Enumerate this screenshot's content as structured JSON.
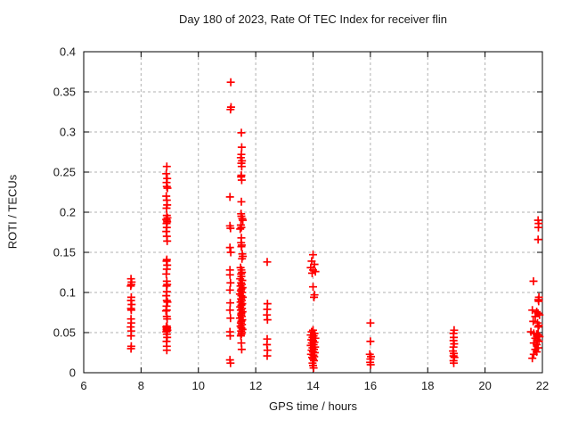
{
  "chart_data": {
    "type": "scatter",
    "title": "Day 180 of 2023, Rate Of TEC Index for receiver flin",
    "xlabel": "GPS time / hours",
    "ylabel": "ROTI / TECUs",
    "xlim": [
      6,
      22
    ],
    "ylim": [
      0,
      0.4
    ],
    "x_ticks": [
      6,
      8,
      10,
      12,
      14,
      16,
      18,
      20,
      22
    ],
    "x_tick_labels": [
      "6",
      "8",
      "10",
      "12",
      "14",
      "16",
      "18",
      "20",
      "22"
    ],
    "y_ticks": [
      0,
      0.05,
      0.1,
      0.15,
      0.2,
      0.25,
      0.3,
      0.35,
      0.4
    ],
    "y_tick_labels": [
      "0",
      "0.05",
      "0.1",
      "0.15",
      "0.2",
      "0.25",
      "0.3",
      "0.35",
      "0.4"
    ],
    "grid": true,
    "legend_position": "none",
    "marker": "plus",
    "marker_color": "#ff0000",
    "grid_color": "#b0b0b0",
    "axis_color": "#000000",
    "series": [
      {
        "name": "ROTI",
        "points": [
          [
            7.65,
            0.117
          ],
          [
            7.67,
            0.113
          ],
          [
            7.66,
            0.11
          ],
          [
            7.64,
            0.108
          ],
          [
            7.66,
            0.094
          ],
          [
            7.65,
            0.09
          ],
          [
            7.67,
            0.085
          ],
          [
            7.65,
            0.08
          ],
          [
            7.66,
            0.078
          ],
          [
            7.65,
            0.067
          ],
          [
            7.66,
            0.062
          ],
          [
            7.64,
            0.057
          ],
          [
            7.66,
            0.052
          ],
          [
            7.65,
            0.046
          ],
          [
            7.66,
            0.033
          ],
          [
            7.65,
            0.03
          ],
          [
            8.9,
            0.257
          ],
          [
            8.88,
            0.248
          ],
          [
            8.91,
            0.242
          ],
          [
            8.89,
            0.237
          ],
          [
            8.9,
            0.232
          ],
          [
            8.92,
            0.23
          ],
          [
            8.88,
            0.22
          ],
          [
            8.9,
            0.215
          ],
          [
            8.91,
            0.209
          ],
          [
            8.89,
            0.205
          ],
          [
            8.9,
            0.196
          ],
          [
            8.92,
            0.193
          ],
          [
            8.88,
            0.191
          ],
          [
            8.9,
            0.19
          ],
          [
            8.91,
            0.188
          ],
          [
            8.89,
            0.186
          ],
          [
            8.9,
            0.181
          ],
          [
            8.88,
            0.176
          ],
          [
            8.9,
            0.17
          ],
          [
            8.91,
            0.164
          ],
          [
            8.9,
            0.141
          ],
          [
            8.89,
            0.139
          ],
          [
            8.91,
            0.134
          ],
          [
            8.9,
            0.129
          ],
          [
            8.88,
            0.123
          ],
          [
            8.9,
            0.114
          ],
          [
            8.91,
            0.11
          ],
          [
            8.89,
            0.108
          ],
          [
            8.9,
            0.101
          ],
          [
            8.88,
            0.096
          ],
          [
            8.9,
            0.09
          ],
          [
            8.92,
            0.088
          ],
          [
            8.89,
            0.083
          ],
          [
            8.9,
            0.078
          ],
          [
            8.87,
            0.077
          ],
          [
            8.9,
            0.07
          ],
          [
            8.91,
            0.067
          ],
          [
            8.9,
            0.058
          ],
          [
            8.88,
            0.057
          ],
          [
            8.91,
            0.056
          ],
          [
            8.9,
            0.055
          ],
          [
            8.89,
            0.054
          ],
          [
            8.92,
            0.053
          ],
          [
            8.9,
            0.052
          ],
          [
            8.88,
            0.051
          ],
          [
            8.9,
            0.048
          ],
          [
            8.91,
            0.044
          ],
          [
            8.89,
            0.039
          ],
          [
            8.9,
            0.033
          ],
          [
            8.9,
            0.028
          ],
          [
            11.13,
            0.362
          ],
          [
            11.14,
            0.331
          ],
          [
            11.12,
            0.328
          ],
          [
            11.1,
            0.219
          ],
          [
            11.1,
            0.183
          ],
          [
            11.12,
            0.18
          ],
          [
            11.1,
            0.156
          ],
          [
            11.13,
            0.15
          ],
          [
            11.1,
            0.128
          ],
          [
            11.1,
            0.122
          ],
          [
            11.12,
            0.112
          ],
          [
            11.1,
            0.103
          ],
          [
            11.11,
            0.087
          ],
          [
            11.1,
            0.078
          ],
          [
            11.12,
            0.068
          ],
          [
            11.1,
            0.051
          ],
          [
            11.11,
            0.046
          ],
          [
            11.1,
            0.016
          ],
          [
            11.12,
            0.012
          ],
          [
            11.5,
            0.299
          ],
          [
            11.51,
            0.281
          ],
          [
            11.5,
            0.272
          ],
          [
            11.48,
            0.268
          ],
          [
            11.52,
            0.264
          ],
          [
            11.5,
            0.261
          ],
          [
            11.51,
            0.257
          ],
          [
            11.5,
            0.246
          ],
          [
            11.49,
            0.244
          ],
          [
            11.51,
            0.24
          ],
          [
            11.5,
            0.213
          ],
          [
            11.49,
            0.198
          ],
          [
            11.5,
            0.195
          ],
          [
            11.53,
            0.192
          ],
          [
            11.55,
            0.19
          ],
          [
            11.48,
            0.184
          ],
          [
            11.5,
            0.181
          ],
          [
            11.46,
            0.179
          ],
          [
            11.5,
            0.168
          ],
          [
            11.49,
            0.162
          ],
          [
            11.51,
            0.159
          ],
          [
            11.5,
            0.157
          ],
          [
            11.53,
            0.148
          ],
          [
            11.55,
            0.145
          ],
          [
            11.52,
            0.142
          ],
          [
            11.47,
            0.131
          ],
          [
            11.5,
            0.128
          ],
          [
            11.52,
            0.125
          ],
          [
            11.49,
            0.123
          ],
          [
            11.5,
            0.12
          ],
          [
            11.46,
            0.117
          ],
          [
            11.53,
            0.115
          ],
          [
            11.49,
            0.112
          ],
          [
            11.51,
            0.11
          ],
          [
            11.47,
            0.108
          ],
          [
            11.54,
            0.106
          ],
          [
            11.5,
            0.104
          ],
          [
            11.48,
            0.102
          ],
          [
            11.52,
            0.1
          ],
          [
            11.45,
            0.098
          ],
          [
            11.5,
            0.096
          ],
          [
            11.55,
            0.094
          ],
          [
            11.49,
            0.092
          ],
          [
            11.51,
            0.09
          ],
          [
            11.47,
            0.088
          ],
          [
            11.53,
            0.086
          ],
          [
            11.5,
            0.084
          ],
          [
            11.46,
            0.082
          ],
          [
            11.52,
            0.08
          ],
          [
            11.48,
            0.078
          ],
          [
            11.54,
            0.076
          ],
          [
            11.5,
            0.074
          ],
          [
            11.49,
            0.072
          ],
          [
            11.51,
            0.07
          ],
          [
            11.45,
            0.068
          ],
          [
            11.53,
            0.066
          ],
          [
            11.5,
            0.064
          ],
          [
            11.48,
            0.062
          ],
          [
            11.52,
            0.06
          ],
          [
            11.47,
            0.058
          ],
          [
            11.5,
            0.056
          ],
          [
            11.54,
            0.054
          ],
          [
            11.49,
            0.052
          ],
          [
            11.51,
            0.05
          ],
          [
            11.5,
            0.048
          ],
          [
            11.48,
            0.046
          ],
          [
            11.5,
            0.037
          ],
          [
            11.51,
            0.029
          ],
          [
            12.4,
            0.138
          ],
          [
            12.41,
            0.086
          ],
          [
            12.4,
            0.079
          ],
          [
            12.39,
            0.072
          ],
          [
            12.41,
            0.066
          ],
          [
            12.4,
            0.042
          ],
          [
            12.39,
            0.035
          ],
          [
            12.41,
            0.028
          ],
          [
            12.4,
            0.021
          ],
          [
            14.0,
            0.147
          ],
          [
            13.95,
            0.139
          ],
          [
            14.05,
            0.135
          ],
          [
            13.92,
            0.131
          ],
          [
            14.0,
            0.128
          ],
          [
            14.08,
            0.126
          ],
          [
            13.97,
            0.124
          ],
          [
            14.0,
            0.107
          ],
          [
            14.05,
            0.097
          ],
          [
            14.03,
            0.094
          ],
          [
            14.0,
            0.053
          ],
          [
            13.95,
            0.051
          ],
          [
            14.05,
            0.049
          ],
          [
            13.92,
            0.047
          ],
          [
            14.02,
            0.046
          ],
          [
            13.98,
            0.044
          ],
          [
            14.08,
            0.043
          ],
          [
            13.94,
            0.041
          ],
          [
            14.0,
            0.04
          ],
          [
            14.05,
            0.038
          ],
          [
            13.96,
            0.037
          ],
          [
            14.02,
            0.035
          ],
          [
            13.92,
            0.034
          ],
          [
            14.07,
            0.032
          ],
          [
            13.98,
            0.031
          ],
          [
            14.03,
            0.029
          ],
          [
            13.95,
            0.028
          ],
          [
            14.0,
            0.026
          ],
          [
            14.06,
            0.025
          ],
          [
            13.93,
            0.023
          ],
          [
            14.01,
            0.022
          ],
          [
            14.04,
            0.02
          ],
          [
            13.97,
            0.019
          ],
          [
            14.0,
            0.017
          ],
          [
            14.03,
            0.015
          ],
          [
            13.98,
            0.012
          ],
          [
            14.0,
            0.009
          ],
          [
            14.02,
            0.006
          ],
          [
            16.0,
            0.062
          ],
          [
            16.0,
            0.039
          ],
          [
            15.98,
            0.023
          ],
          [
            16.02,
            0.02
          ],
          [
            16.0,
            0.017
          ],
          [
            15.99,
            0.013
          ],
          [
            16.01,
            0.01
          ],
          [
            18.92,
            0.053
          ],
          [
            18.9,
            0.049
          ],
          [
            18.91,
            0.044
          ],
          [
            18.9,
            0.04
          ],
          [
            18.92,
            0.036
          ],
          [
            18.9,
            0.032
          ],
          [
            18.88,
            0.027
          ],
          [
            18.91,
            0.024
          ],
          [
            18.9,
            0.021
          ],
          [
            18.93,
            0.019
          ],
          [
            18.9,
            0.015
          ],
          [
            18.91,
            0.012
          ],
          [
            21.85,
            0.19
          ],
          [
            21.87,
            0.186
          ],
          [
            21.86,
            0.181
          ],
          [
            21.85,
            0.166
          ],
          [
            21.69,
            0.114
          ],
          [
            21.88,
            0.094
          ],
          [
            21.86,
            0.091
          ],
          [
            21.87,
            0.089
          ],
          [
            21.65,
            0.078
          ],
          [
            21.8,
            0.076
          ],
          [
            21.85,
            0.074
          ],
          [
            21.9,
            0.072
          ],
          [
            21.75,
            0.07
          ],
          [
            21.68,
            0.064
          ],
          [
            21.83,
            0.062
          ],
          [
            21.88,
            0.059
          ],
          [
            21.85,
            0.057
          ],
          [
            21.6,
            0.051
          ],
          [
            21.7,
            0.049
          ],
          [
            21.8,
            0.048
          ],
          [
            21.85,
            0.047
          ],
          [
            21.9,
            0.045
          ],
          [
            21.75,
            0.043
          ],
          [
            21.82,
            0.041
          ],
          [
            21.88,
            0.039
          ],
          [
            21.7,
            0.037
          ],
          [
            21.8,
            0.035
          ],
          [
            21.85,
            0.031
          ],
          [
            21.75,
            0.029
          ],
          [
            21.8,
            0.026
          ],
          [
            21.7,
            0.023
          ],
          [
            21.65,
            0.018
          ]
        ]
      }
    ]
  }
}
